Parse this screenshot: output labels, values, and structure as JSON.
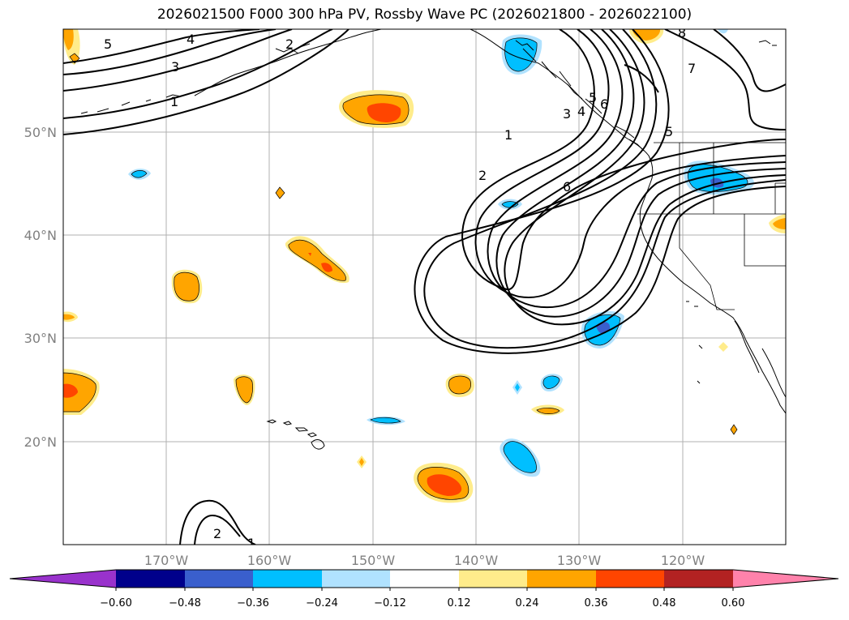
{
  "title": "2026021500 F000 300 hPa PV, Rossby Wave PC (2026021800 - 2026022100)",
  "map": {
    "region": "North Pacific / western North America",
    "lon_range": [
      -180,
      -110
    ],
    "lat_range": [
      10,
      60
    ],
    "lon_ticks": [
      "170°W",
      "160°W",
      "150°W",
      "140°W",
      "130°W",
      "120°W"
    ],
    "lat_ticks": [
      "50°N",
      "40°N",
      "30°N",
      "20°N"
    ],
    "gridlines": true
  },
  "contour_labels": [
    "5",
    "4",
    "3",
    "1",
    "2",
    "8",
    "7",
    "1",
    "2",
    "3",
    "4",
    "5",
    "6",
    "5",
    "6",
    "2",
    "1"
  ],
  "colorbar": {
    "ticks": [
      "−0.60",
      "−0.48",
      "−0.36",
      "−0.24",
      "−0.12",
      "0.12",
      "0.24",
      "0.36",
      "0.48",
      "0.60"
    ],
    "colors": [
      "#9932cc",
      "#00008b",
      "#3a5fcd",
      "#00bfff",
      "#b0e2ff",
      "#ffffff",
      "#ffec8b",
      "#ffa500",
      "#ff4500",
      "#b22222",
      "#ff82ab"
    ],
    "extend": "both"
  }
}
